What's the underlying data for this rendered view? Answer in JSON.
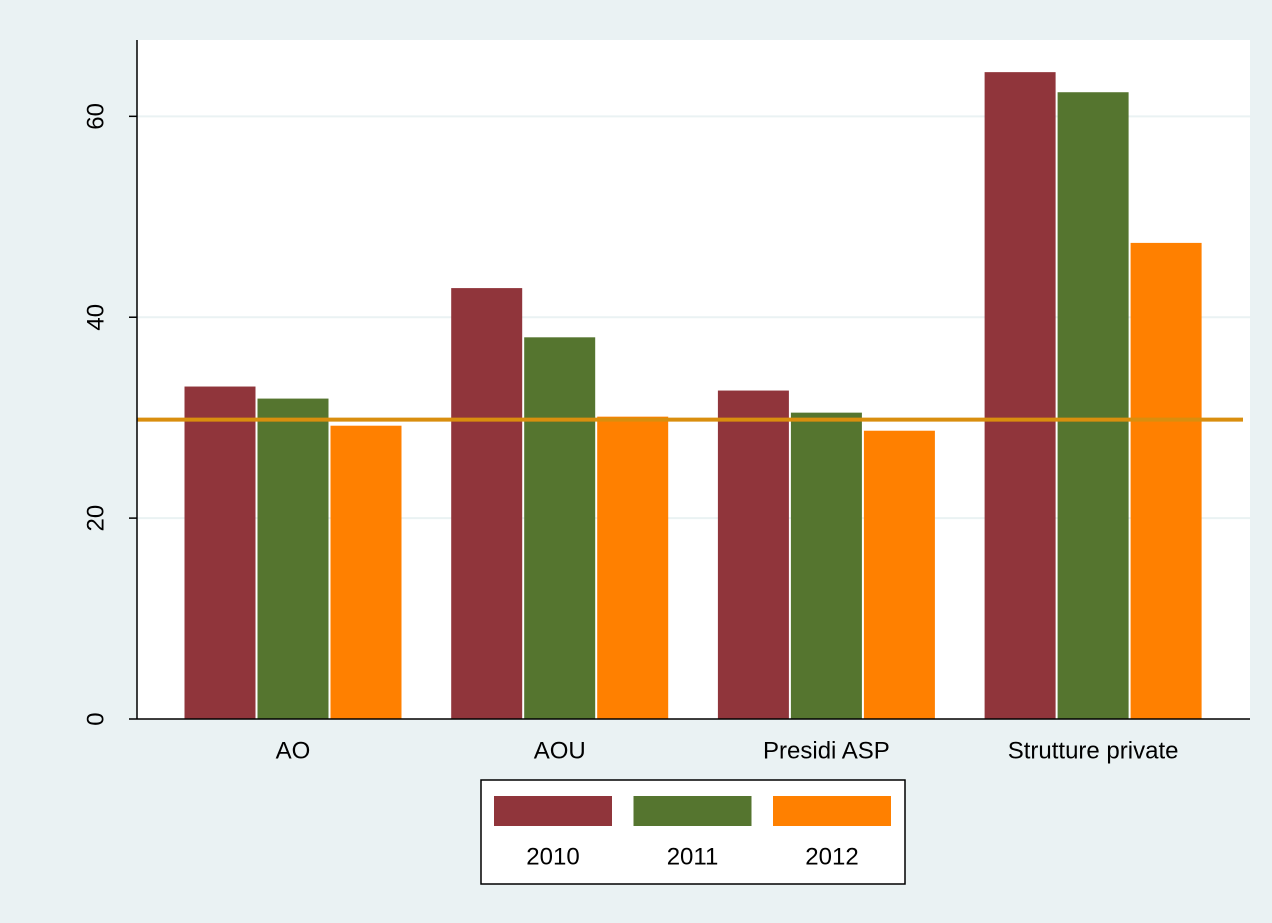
{
  "chart_data": {
    "type": "bar",
    "categories": [
      "AO",
      "AOU",
      "Presidi ASP",
      "Strutture private"
    ],
    "series": [
      {
        "name": "2010",
        "color": "#90353b",
        "values": [
          33.1,
          42.9,
          32.7,
          64.4
        ]
      },
      {
        "name": "2011",
        "color": "#55752f",
        "values": [
          31.9,
          38.0,
          30.5,
          62.4
        ]
      },
      {
        "name": "2012",
        "color": "#ff8000",
        "values": [
          29.2,
          30.1,
          28.7,
          47.4
        ]
      }
    ],
    "reference_line": {
      "value": 29.8,
      "color": "#d98e0e"
    },
    "ylim": [
      0,
      67.6
    ],
    "yticks": [
      0,
      20,
      40,
      60
    ],
    "grid": true,
    "legend": "bottom"
  }
}
